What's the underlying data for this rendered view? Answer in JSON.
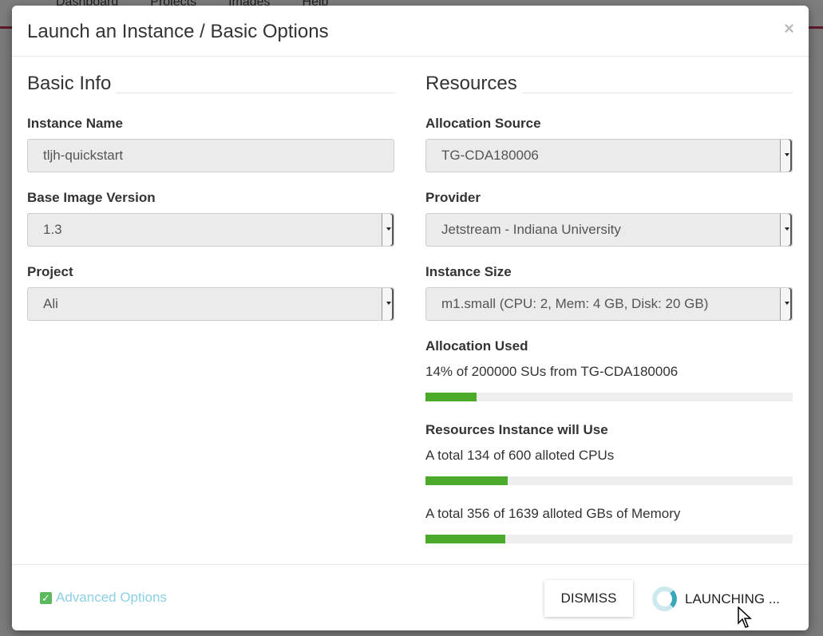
{
  "background_nav": [
    "Dashboard",
    "Projects",
    "Images",
    "Help"
  ],
  "modal": {
    "title": "Launch an Instance / Basic Options",
    "close": "×",
    "basic_info": {
      "heading": "Basic Info",
      "instance_name_label": "Instance Name",
      "instance_name_value": "tljh-quickstart",
      "base_image_label": "Base Image Version",
      "base_image_value": "1.3",
      "project_label": "Project",
      "project_value": "Ali"
    },
    "resources": {
      "heading": "Resources",
      "allocation_source_label": "Allocation Source",
      "allocation_source_value": "TG-CDA180006",
      "provider_label": "Provider",
      "provider_value": "Jetstream - Indiana University",
      "instance_size_label": "Instance Size",
      "instance_size_value": "m1.small (CPU: 2, Mem: 4 GB, Disk: 20 GB)",
      "allocation_used_label": "Allocation Used",
      "allocation_used_text": "14% of 200000 SUs from TG-CDA180006",
      "allocation_used_percent": 14,
      "resources_label": "Resources Instance will Use",
      "cpu_text": "A total 134 of 600 alloted CPUs",
      "cpu_percent": 22.3,
      "memory_text": "A total 356 of 1639 alloted GBs of Memory",
      "memory_percent": 21.7,
      "bar_color": "#4caa2b"
    },
    "footer": {
      "advanced_options": "Advanced Options",
      "dismiss": "DISMISS",
      "launching": "LAUNCHING ..."
    }
  }
}
